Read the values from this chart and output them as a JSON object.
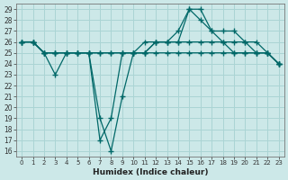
{
  "xlabel": "Humidex (Indice chaleur)",
  "xlim": [
    -0.5,
    23.5
  ],
  "ylim": [
    15.5,
    29.5
  ],
  "xticks": [
    0,
    1,
    2,
    3,
    4,
    5,
    6,
    7,
    8,
    9,
    10,
    11,
    12,
    13,
    14,
    15,
    16,
    17,
    18,
    19,
    20,
    21,
    22,
    23
  ],
  "yticks": [
    16,
    17,
    18,
    19,
    20,
    21,
    22,
    23,
    24,
    25,
    26,
    27,
    28,
    29
  ],
  "bg_color": "#cce8e8",
  "grid_color": "#aad4d4",
  "line_color": "#006868",
  "series": [
    {
      "x": [
        0,
        1,
        2,
        3,
        4,
        5,
        6,
        7,
        8,
        9,
        10,
        11,
        12,
        13,
        14,
        15,
        16,
        17,
        18,
        19,
        20,
        21,
        22,
        23
      ],
      "y": [
        26,
        26,
        25,
        23,
        25,
        25,
        25,
        19,
        16,
        21,
        25,
        25,
        26,
        26,
        26,
        29,
        29,
        27,
        26,
        26,
        26,
        25,
        25,
        24
      ]
    },
    {
      "x": [
        0,
        1,
        2,
        3,
        4,
        5,
        6,
        7,
        8,
        9,
        10,
        11,
        12,
        13,
        14,
        15,
        16,
        17,
        18,
        19,
        20,
        21,
        22,
        23
      ],
      "y": [
        26,
        26,
        25,
        25,
        25,
        25,
        25,
        17,
        19,
        25,
        25,
        26,
        26,
        26,
        27,
        29,
        28,
        27,
        27,
        27,
        26,
        26,
        25,
        24
      ]
    },
    {
      "x": [
        0,
        1,
        2,
        3,
        4,
        5,
        6,
        7,
        8,
        9,
        10,
        11,
        12,
        13,
        14,
        15,
        16,
        17,
        18,
        19,
        20,
        21,
        22,
        23
      ],
      "y": [
        26,
        26,
        25,
        25,
        25,
        25,
        25,
        25,
        25,
        25,
        25,
        25,
        26,
        26,
        26,
        26,
        26,
        26,
        26,
        25,
        25,
        25,
        25,
        24
      ]
    },
    {
      "x": [
        0,
        1,
        2,
        3,
        4,
        5,
        6,
        7,
        8,
        9,
        10,
        11,
        12,
        13,
        14,
        15,
        16,
        17,
        18,
        19,
        20,
        21,
        22,
        23
      ],
      "y": [
        26,
        26,
        25,
        25,
        25,
        25,
        25,
        25,
        25,
        25,
        25,
        25,
        25,
        25,
        25,
        25,
        25,
        25,
        25,
        25,
        25,
        25,
        25,
        24
      ]
    }
  ]
}
